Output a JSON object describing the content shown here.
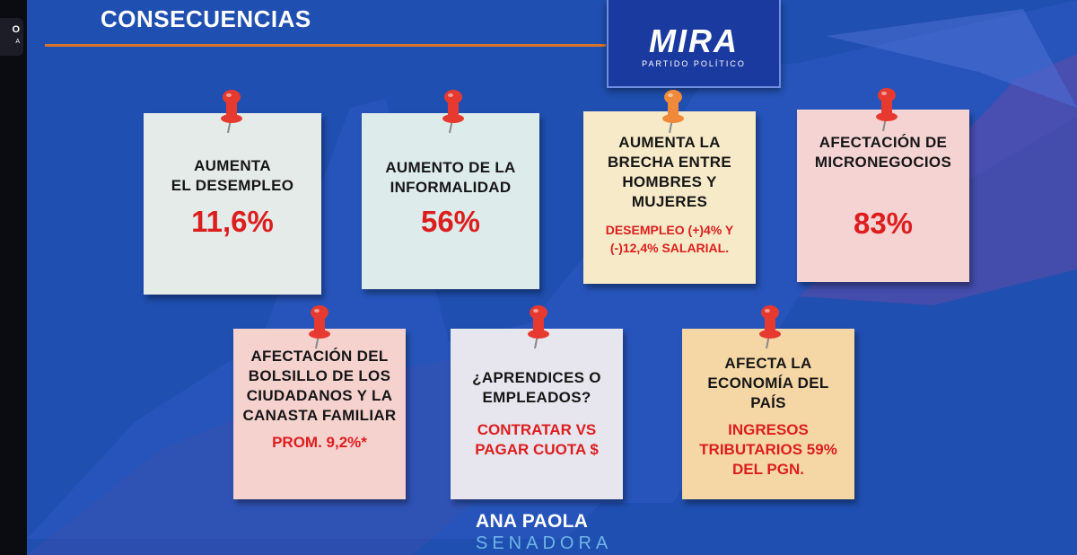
{
  "header": {
    "title": "CONSECUENCIAS"
  },
  "logo": {
    "word": "MIRA",
    "subtitle": "PARTIDO POLÍTICO"
  },
  "left_edge": {
    "text": "O",
    "sub": "A"
  },
  "notes": [
    {
      "text": "AUMENTA\nEL DESEMPLEO",
      "value": "11,6%",
      "color": "#e4ebe9"
    },
    {
      "text": "AUMENTO DE LA\nINFORMALIDAD",
      "value": "56%",
      "color": "#ddebea"
    },
    {
      "text": "AUMENTA LA\nBRECHA ENTRE\nHOMBRES Y\nMUJERES",
      "value": "DESEMPLEO (+)4% Y\n(-)12,4% SALARIAL.",
      "color": "#f7eac8"
    },
    {
      "text": "AFECTACIÓN DE\nMICRONEGOCIOS",
      "value": "83%",
      "color": "#f6d3d3"
    },
    {
      "text": "AFECTACIÓN DEL\nBOLSILLO DE LOS\nCIUDADANOS Y LA\nCANASTA FAMILIAR",
      "value": "PROM. 9,2%*",
      "color": "#f6d2cf"
    },
    {
      "text": "¿APRENDICES O\nEMPLEADOS?",
      "value": "CONTRATAR VS\nPAGAR CUOTA $",
      "color": "#e7e5ee"
    },
    {
      "text": "AFECTA LA\nECONOMÍA DEL\nPAÍS",
      "value": "INGRESOS\nTRIBUTARIOS 59%\nDEL PGN.",
      "color": "#f5d7a6"
    }
  ],
  "pin_colors": {
    "red": "#e63a30",
    "orange": "#f08a3a"
  },
  "footer": {
    "name": "ANA PAOLA",
    "subtitle": "SENADORA"
  }
}
